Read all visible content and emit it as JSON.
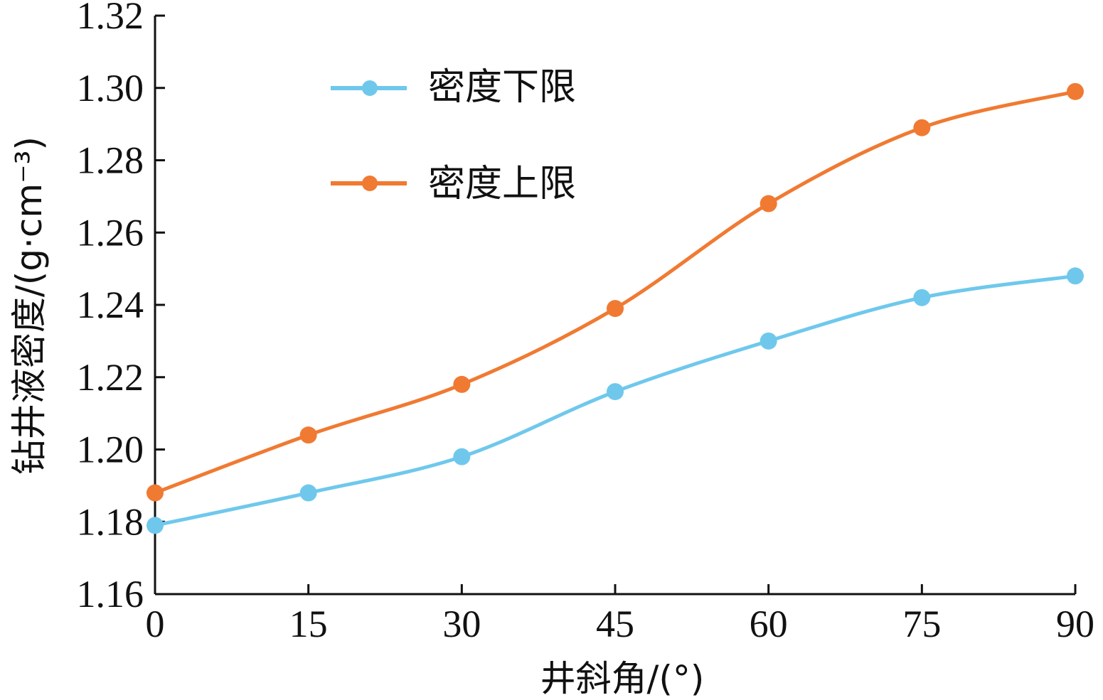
{
  "chart_data": {
    "type": "line",
    "x": [
      0,
      15,
      30,
      45,
      60,
      75,
      90
    ],
    "x_ticks": [
      "0",
      "15",
      "30",
      "45",
      "60",
      "75",
      "90"
    ],
    "y_ticks": [
      "1.16",
      "1.18",
      "1.20",
      "1.22",
      "1.24",
      "1.26",
      "1.28",
      "1.30",
      "1.32"
    ],
    "xlim": [
      0,
      90
    ],
    "ylim": [
      1.16,
      1.32
    ],
    "xlabel": "井斜角/(°)",
    "ylabel": "钻井液密度/(g·cm⁻³)",
    "grid": false,
    "legend_position": "top-left",
    "series": [
      {
        "name": "密度下限",
        "color": "#6fc8ec",
        "values": [
          1.179,
          1.188,
          1.198,
          1.216,
          1.23,
          1.242,
          1.248
        ]
      },
      {
        "name": "密度上限",
        "color": "#f07a32",
        "values": [
          1.188,
          1.204,
          1.218,
          1.239,
          1.268,
          1.289,
          1.299
        ]
      }
    ]
  }
}
